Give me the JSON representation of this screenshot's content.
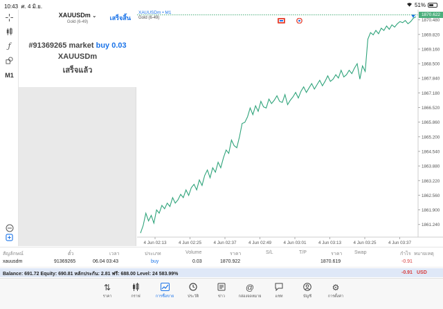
{
  "status_bar": {
    "time": "10:43",
    "date": "ศ. 4 มิ.ย.",
    "battery": "51%",
    "battery_level": 0.51
  },
  "toolbar": {
    "timeframe": "M1"
  },
  "order_panel": {
    "symbol": "XAUUSDm",
    "description": "Gold (6-49)",
    "done_label": "เสร็จสิ้น",
    "order_line_prefix": "#91369265 market",
    "order_action": "buy 0.03",
    "order_symbol": "XAUUSDm",
    "order_status": "เสร็จแล้ว"
  },
  "chart_header": {
    "symbol": "XAUUSDm",
    "timeframe": "M1",
    "description": "Gold (6-49)",
    "current_price": "1870.622"
  },
  "chart_data": {
    "type": "line",
    "title": "",
    "xlabel": "",
    "ylabel": "",
    "x_ticks": [
      "4 Jun 02:13",
      "4 Jun 02:25",
      "4 Jun 02:37",
      "4 Jun 02:49",
      "4 Jun 03:01",
      "4 Jun 03:13",
      "4 Jun 03:25",
      "4 Jun 03:37"
    ],
    "y_ticks": [
      "1870.480",
      "1869.820",
      "1869.160",
      "1868.500",
      "1867.840",
      "1867.180",
      "1866.520",
      "1865.860",
      "1865.200",
      "1864.540",
      "1863.880",
      "1863.220",
      "1862.560",
      "1861.900",
      "1861.240"
    ],
    "ylim": [
      1860.7,
      1870.75
    ],
    "x": [
      0,
      1,
      2,
      3,
      4,
      5,
      6,
      7,
      8,
      9,
      10,
      11,
      12,
      13,
      14,
      15,
      16,
      17,
      18,
      19,
      20,
      21,
      22,
      23,
      24,
      25,
      26,
      27,
      28,
      29,
      30,
      31,
      32,
      33,
      34,
      35,
      36,
      37,
      38,
      39,
      40,
      41,
      42,
      43,
      44,
      45,
      46,
      47,
      48,
      49,
      50,
      51,
      52,
      53,
      54,
      55,
      56,
      57,
      58,
      59,
      60,
      61,
      62,
      63,
      64,
      65,
      66,
      67,
      68,
      69,
      70,
      71,
      72,
      73,
      74,
      75,
      76,
      77,
      78,
      79,
      80,
      81,
      82,
      83,
      84,
      85,
      86,
      87,
      88,
      89,
      90,
      91,
      92,
      93,
      94,
      95,
      96,
      97,
      98,
      99,
      100,
      101,
      102,
      103
    ],
    "values": [
      1860.85,
      1861.2,
      1861.75,
      1861.4,
      1861.65,
      1861.3,
      1861.9,
      1861.75,
      1862.1,
      1861.95,
      1862.2,
      1862.05,
      1862.45,
      1862.2,
      1862.35,
      1862.6,
      1862.45,
      1862.8,
      1862.55,
      1862.9,
      1863.05,
      1862.8,
      1863.25,
      1863.0,
      1863.45,
      1863.7,
      1863.35,
      1863.8,
      1863.6,
      1864.05,
      1863.8,
      1864.25,
      1864.6,
      1864.45,
      1865.05,
      1864.8,
      1864.7,
      1865.2,
      1865.8,
      1865.85,
      1866.1,
      1866.5,
      1866.2,
      1866.6,
      1866.35,
      1866.8,
      1866.55,
      1866.5,
      1866.9,
      1866.7,
      1866.85,
      1867.05,
      1866.8,
      1866.75,
      1867.1,
      1866.65,
      1866.85,
      1867.0,
      1867.2,
      1866.95,
      1867.25,
      1867.45,
      1867.2,
      1867.4,
      1867.6,
      1867.35,
      1867.55,
      1867.75,
      1867.5,
      1867.7,
      1867.95,
      1867.7,
      1867.8,
      1868.0,
      1867.85,
      1868.2,
      1867.9,
      1868.0,
      1868.2,
      1868.05,
      1868.3,
      1868.5,
      1867.8,
      1868.4,
      1868.15,
      1869.6,
      1869.9,
      1869.8,
      1870.0,
      1869.85,
      1870.1,
      1870.0,
      1870.2,
      1870.05,
      1870.25,
      1870.15,
      1870.3,
      1870.4,
      1870.35,
      1870.45,
      1870.3,
      1870.4,
      1870.55,
      1870.62
    ]
  },
  "positions": {
    "headers": {
      "symbol": "สัญลักษณ์",
      "ticket": "ตั๋ว",
      "time": "เวลา",
      "type": "ประเภท",
      "volume": "Volume",
      "price": "ราคา",
      "sl": "S/L",
      "tp": "T/P",
      "current_price": "ราคา",
      "swap": "Swap",
      "profit": "กำไร",
      "comment": "หมายเหตุ"
    },
    "row": {
      "symbol": "xauusdm",
      "ticket": "91369265",
      "time": "06.04 03:43",
      "type": "buy",
      "volume": "0.03",
      "price": "1870.922",
      "current_price": "1870.619",
      "profit": "-0.91"
    }
  },
  "balance_bar": {
    "text": "Balance: 691.72 Equity: 690.81 หลักประกัน: 2.81 ฟรี: 688.00 Level: 24 583.99%",
    "total": "-0.91",
    "currency": "USD"
  },
  "tabs": [
    {
      "label": "ราคา",
      "icon": "trade-arrows-icon"
    },
    {
      "label": "กราฟ",
      "icon": "candles-icon"
    },
    {
      "label": "การซื้อขาย",
      "icon": "chart-trend-icon"
    },
    {
      "label": "ประวัติ",
      "icon": "history-clock-icon"
    },
    {
      "label": "ข่าว",
      "icon": "news-icon"
    },
    {
      "label": "กล่องจดหมาย",
      "icon": "at-mail-icon"
    },
    {
      "label": "แชท",
      "icon": "chat-bubble-icon"
    },
    {
      "label": "บัญชี",
      "icon": "account-icon"
    },
    {
      "label": "การตั้งค่า",
      "icon": "settings-gear-icon"
    }
  ],
  "colors": {
    "line": "#2ea37a",
    "accent": "#1a73e8",
    "loss": "#d63b3b",
    "balance_bg": "#dfe8f7"
  }
}
